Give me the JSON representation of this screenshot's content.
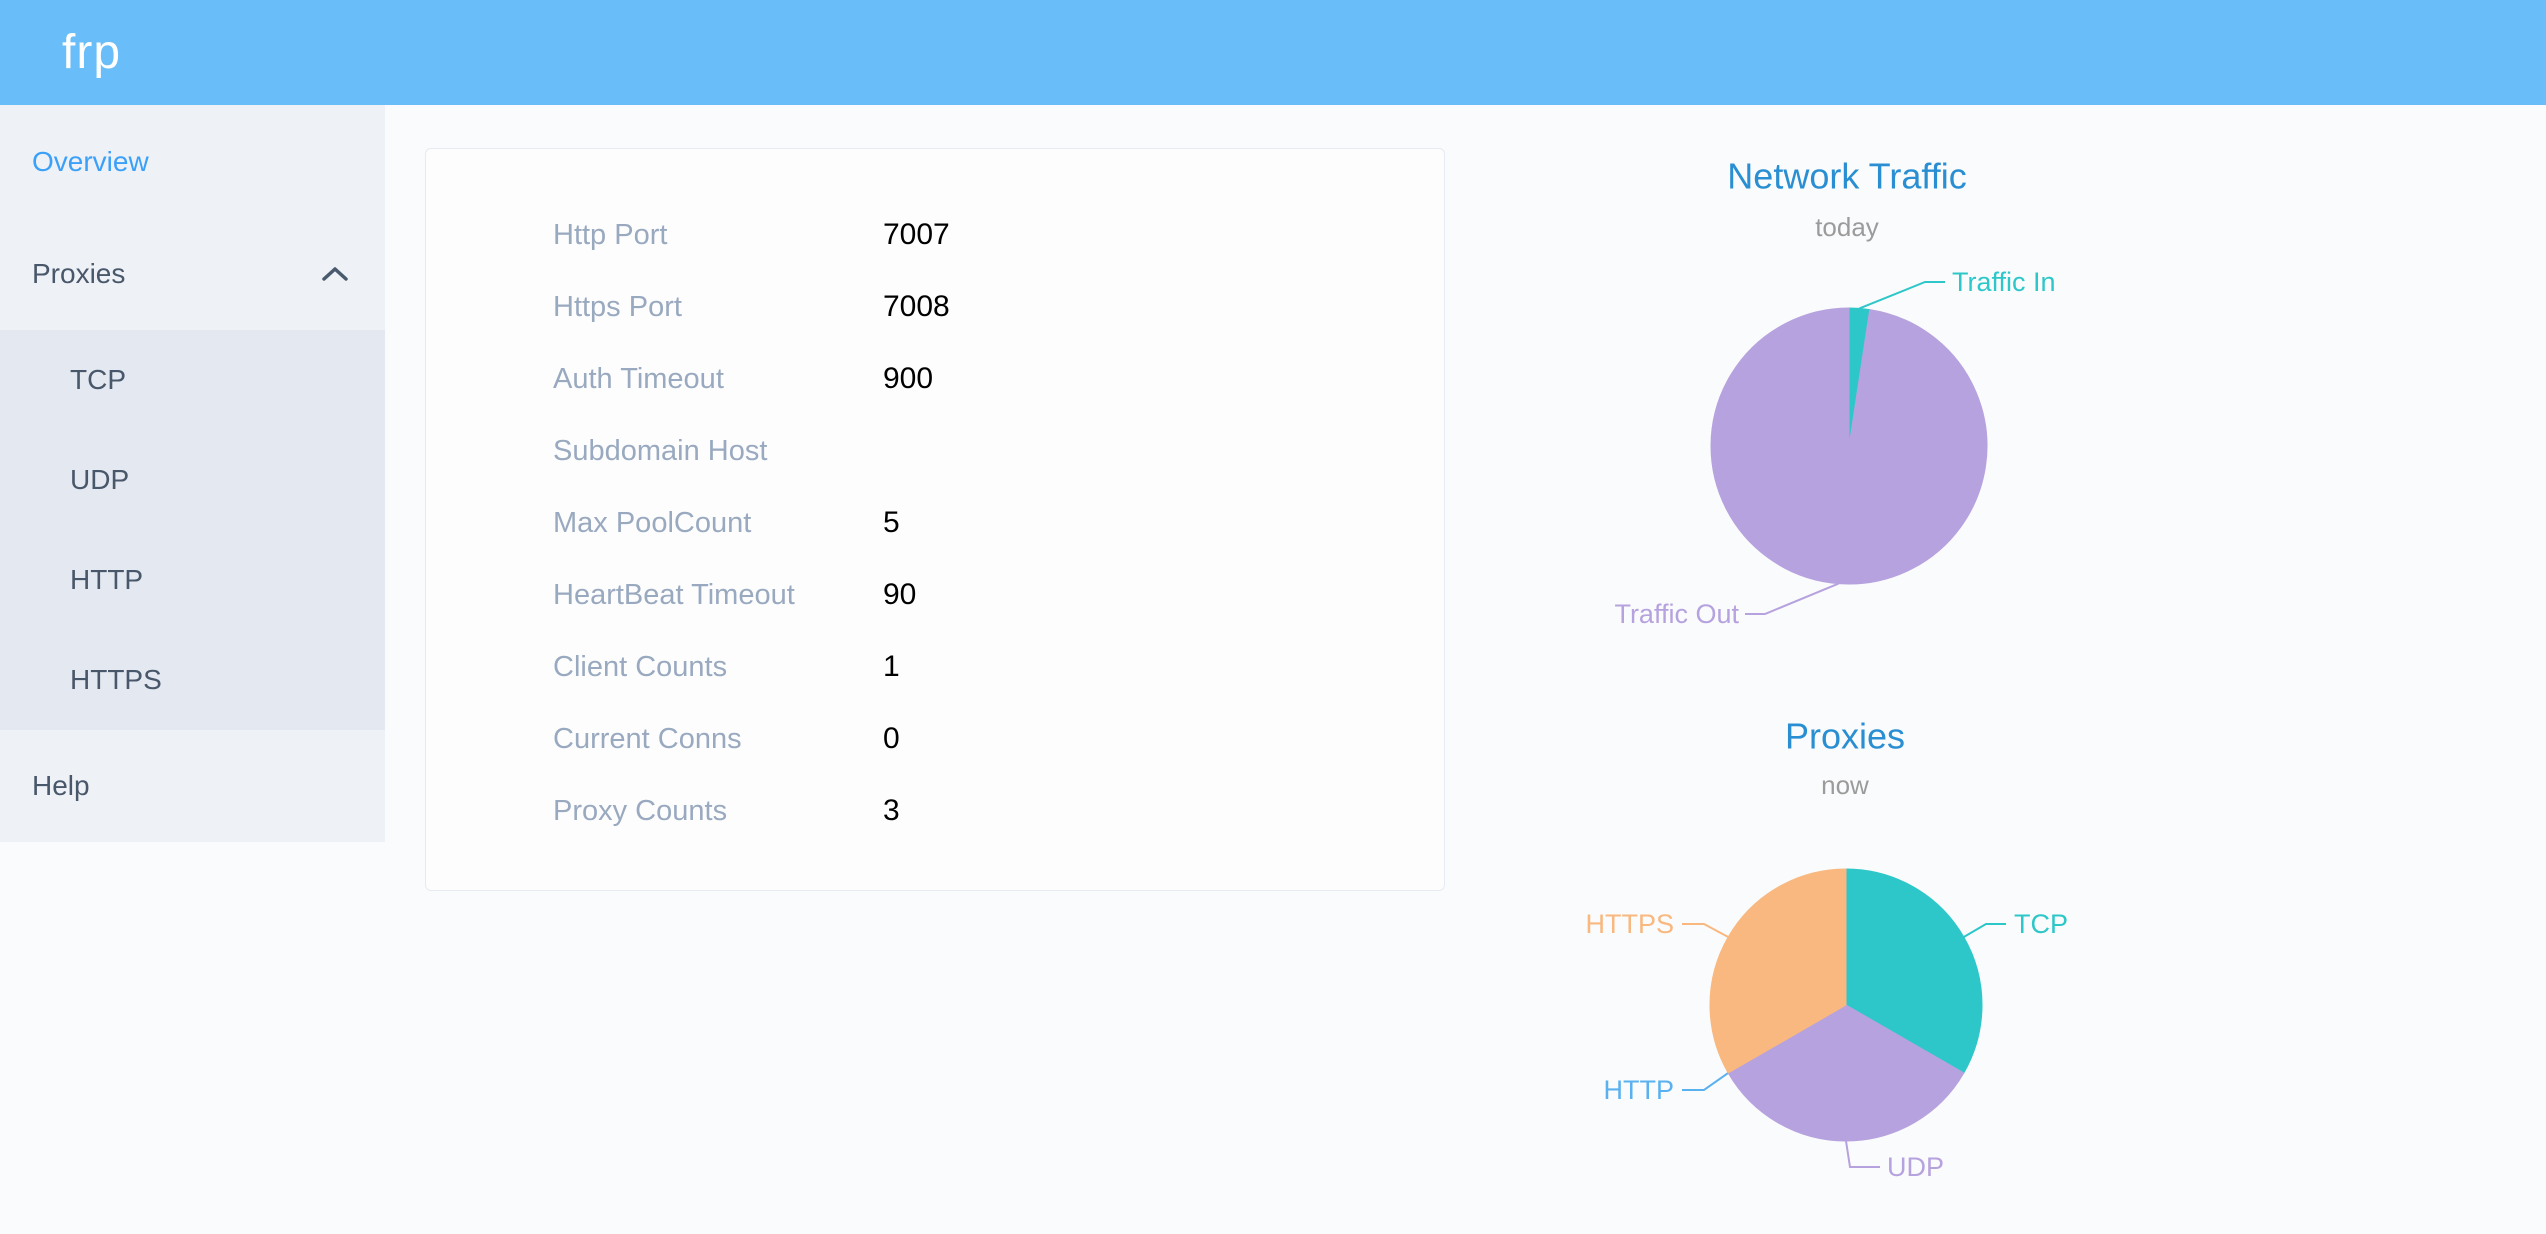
{
  "header": {
    "logo": "frp"
  },
  "sidebar": {
    "overview": "Overview",
    "proxies": "Proxies",
    "proxy_types": [
      "TCP",
      "UDP",
      "HTTP",
      "HTTPS"
    ],
    "help": "Help"
  },
  "server_info": {
    "rows": [
      {
        "label": "Http Port",
        "value": "7007"
      },
      {
        "label": "Https Port",
        "value": "7008"
      },
      {
        "label": "Auth Timeout",
        "value": "900"
      },
      {
        "label": "Subdomain Host",
        "value": ""
      },
      {
        "label": "Max PoolCount",
        "value": "5"
      },
      {
        "label": "HeartBeat Timeout",
        "value": "90"
      },
      {
        "label": "Client Counts",
        "value": "1"
      },
      {
        "label": "Current Conns",
        "value": "0"
      },
      {
        "label": "Proxy Counts",
        "value": "3"
      }
    ]
  },
  "colors": {
    "header_bg": "#69bdf8",
    "sidebar_bg": "#eef1f6",
    "submenu_bg": "#e3e8f1",
    "active_menu_blue": "#3ba0f8",
    "menu_text": "#48576a",
    "card_label_gray": "#99a9bf",
    "chart_title_blue": "#2a8fd2",
    "subtitle_gray": "#9b9b9b"
  },
  "chart_data": [
    {
      "type": "pie",
      "title": "Network Traffic",
      "subtitle": "today",
      "legend_position": "none",
      "slices": [
        {
          "name": "Traffic In",
          "pct": 2.4,
          "color": "#2ec7c9"
        },
        {
          "name": "Traffic Out",
          "pct": 97.6,
          "color": "#b6a2de"
        }
      ]
    },
    {
      "type": "pie",
      "title": "Proxies",
      "subtitle": "now",
      "legend_position": "none",
      "slices": [
        {
          "name": "TCP",
          "pct": 33.33,
          "count": 1,
          "color": "#2ec7c9"
        },
        {
          "name": "UDP",
          "pct": 33.34,
          "count": 1,
          "color": "#b6a2de"
        },
        {
          "name": "HTTP",
          "pct": 0,
          "count": 0,
          "color": "#5ab1ef"
        },
        {
          "name": "HTTPS",
          "pct": 33.33,
          "count": 1,
          "color": "#f8b87f"
        }
      ]
    }
  ]
}
